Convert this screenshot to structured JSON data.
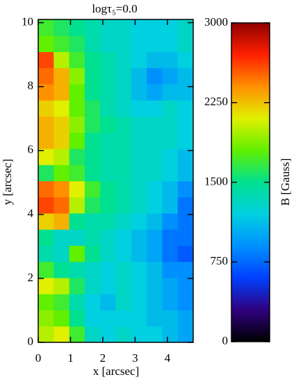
{
  "chart_data": {
    "type": "heatmap",
    "title": "logτ₅=0.0",
    "xlabel": "x [arcsec]",
    "ylabel": "y [arcsec]",
    "xlim": [
      0,
      4.8
    ],
    "ylim": [
      0,
      10.1
    ],
    "xticks": [
      0,
      1,
      2,
      3,
      4
    ],
    "yticks": [
      0,
      2,
      4,
      6,
      8,
      10
    ],
    "z": [
      [
        2000,
        2100,
        1700,
        1300,
        1200,
        1300,
        1200,
        1200,
        1100,
        1000
      ],
      [
        1900,
        1800,
        1500,
        1200,
        1200,
        1200,
        1200,
        1100,
        1100,
        1000
      ],
      [
        1800,
        1700,
        1400,
        1200,
        1100,
        1300,
        1200,
        1100,
        1000,
        900
      ],
      [
        2100,
        2000,
        1600,
        1300,
        1200,
        1300,
        1200,
        1100,
        1000,
        900
      ],
      [
        1700,
        1500,
        1400,
        1300,
        1200,
        1300,
        1200,
        1100,
        900,
        900
      ],
      [
        1400,
        1300,
        1800,
        1500,
        1300,
        1200,
        1100,
        1000,
        800,
        700
      ],
      [
        1500,
        1300,
        1300,
        1400,
        1300,
        1200,
        1100,
        1000,
        800,
        800
      ],
      [
        2200,
        2300,
        1500,
        1400,
        1400,
        1300,
        1200,
        1100,
        900,
        800
      ],
      [
        2600,
        2500,
        2000,
        1600,
        1500,
        1400,
        1300,
        1200,
        1100,
        800
      ],
      [
        2500,
        2400,
        2100,
        1700,
        1500,
        1400,
        1300,
        1200,
        1100,
        900
      ],
      [
        1600,
        1800,
        1700,
        1500,
        1400,
        1400,
        1300,
        1300,
        1200,
        1100
      ],
      [
        2100,
        2000,
        1600,
        1500,
        1400,
        1400,
        1300,
        1300,
        1200,
        1100
      ],
      [
        2300,
        2200,
        1800,
        1500,
        1400,
        1400,
        1300,
        1300,
        1300,
        1200
      ],
      [
        2300,
        2200,
        1900,
        1600,
        1500,
        1400,
        1300,
        1300,
        1300,
        1200
      ],
      [
        2200,
        2100,
        1800,
        1600,
        1400,
        1300,
        1200,
        1200,
        1300,
        1200
      ],
      [
        2400,
        2300,
        1800,
        1500,
        1400,
        1300,
        1100,
        1000,
        1100,
        1100
      ],
      [
        2500,
        2300,
        1900,
        1500,
        1400,
        1300,
        1100,
        900,
        1000,
        1100
      ],
      [
        2600,
        2000,
        1700,
        1500,
        1400,
        1300,
        1200,
        1100,
        1100,
        1200
      ],
      [
        1800,
        1700,
        1600,
        1400,
        1300,
        1300,
        1200,
        1200,
        1200,
        1300
      ],
      [
        1700,
        1600,
        1500,
        1400,
        1300,
        1300,
        1200,
        1200,
        1200,
        1300
      ]
    ],
    "colorbar": {
      "label": "B [Gauss]",
      "clim": [
        0,
        3000
      ],
      "ticks": [
        0,
        750,
        1500,
        2250,
        3000
      ],
      "colors": [
        "#000000",
        "#30007f",
        "#0040ff",
        "#0090ff",
        "#00d0e0",
        "#00e090",
        "#60f000",
        "#e0f000",
        "#ff9000",
        "#ff2000",
        "#900000"
      ]
    }
  }
}
